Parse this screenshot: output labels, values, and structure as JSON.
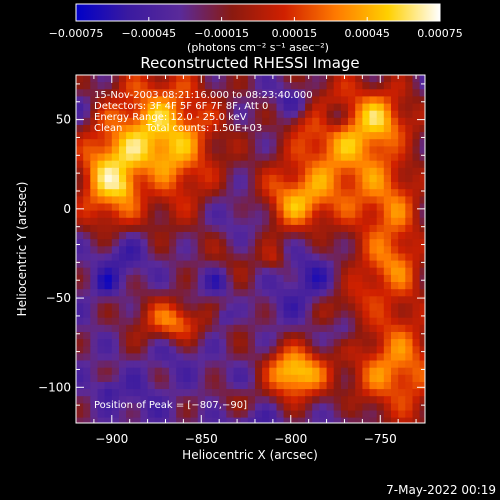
{
  "chart_data": {
    "type": "heatmap",
    "title": "Reconstructed RHESSI Image",
    "xlabel": "Heliocentric X (arcsec)",
    "ylabel": "Heliocentric Y (arcsec)",
    "xlim": [
      -920,
      -725
    ],
    "ylim": [
      -120,
      75
    ],
    "xticks": [
      -900,
      -850,
      -800,
      -750
    ],
    "xtick_labels": [
      "−900",
      "−850",
      "−800",
      "−750"
    ],
    "yticks": [
      50,
      0,
      -50,
      -100
    ],
    "ytick_labels": [
      "50",
      "0",
      "−50",
      "−100"
    ],
    "colorbar": {
      "range": [
        -0.00075,
        0.00075
      ],
      "ticks": [
        -0.00075,
        -0.00045,
        -0.00015,
        0.00015,
        0.00045,
        0.00075
      ],
      "tick_labels": [
        "−0.00075",
        "−0.00045",
        "−0.00015",
        "0.00015",
        "0.00045",
        "0.00075"
      ],
      "label": "(photons cm⁻² s⁻¹ asec⁻²)",
      "colormap": [
        "#0000c8",
        "#3a1aa0",
        "#5a2a9a",
        "#8a1a10",
        "#d02000",
        "#ff7a00",
        "#ffd000",
        "#ffffff"
      ]
    },
    "annotations": [
      "15-Nov-2003 08:21:16.000 to 08:23:40.000",
      "Detectors: 3F 4F 5F 6F 7F 8F, Att 0",
      "Energy Range: 12.0 - 25.0 keV",
      "Clean",
      "Total counts: 1.50E+03"
    ],
    "peak_label": "Position of Peak = [−807,−90]",
    "peak": [
      -807,
      -90
    ],
    "hot_regions": [
      {
        "x": -875,
        "y": 40,
        "amp": 0.9,
        "sx": 22,
        "sy": 28
      },
      {
        "x": -905,
        "y": 15,
        "amp": 0.6,
        "sx": 12,
        "sy": 20
      },
      {
        "x": -770,
        "y": 40,
        "amp": 0.8,
        "sx": 22,
        "sy": 30
      },
      {
        "x": -745,
        "y": -10,
        "amp": 0.55,
        "sx": 12,
        "sy": 20
      },
      {
        "x": -800,
        "y": 5,
        "amp": 0.6,
        "sx": 14,
        "sy": 12
      },
      {
        "x": -800,
        "y": -90,
        "amp": 1.0,
        "sx": 12,
        "sy": 10
      },
      {
        "x": -745,
        "y": -85,
        "amp": 0.75,
        "sx": 18,
        "sy": 22
      },
      {
        "x": -865,
        "y": -62,
        "amp": 0.6,
        "sx": 10,
        "sy": 8
      },
      {
        "x": -830,
        "y": -105,
        "amp": 0.45,
        "sx": 14,
        "sy": 8
      },
      {
        "x": -760,
        "y": -45,
        "amp": 0.45,
        "sx": 14,
        "sy": 14
      }
    ]
  },
  "footer": {
    "timestamp": "7-May-2022 00:19"
  }
}
